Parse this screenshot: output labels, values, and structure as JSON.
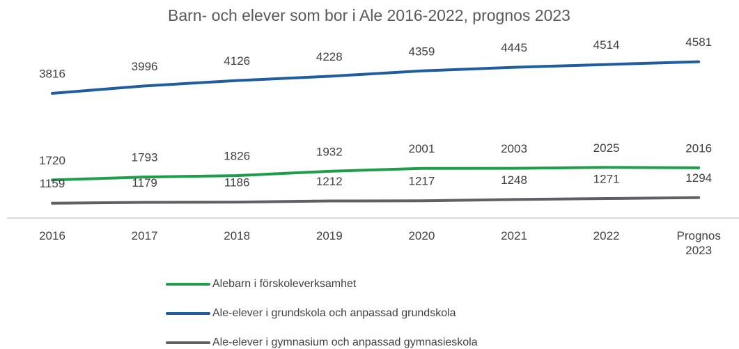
{
  "chart_data": {
    "type": "line",
    "title": "Barn- och elever som bor i Ale 2016-2022, prognos 2023",
    "categories": [
      "2016",
      "2017",
      "2018",
      "2019",
      "2020",
      "2021",
      "2022",
      "Prognos 2023"
    ],
    "series": [
      {
        "name": "Alebarn i förskoleverksamhet",
        "color": "#1e9e4a",
        "values": [
          1720,
          1793,
          1826,
          1932,
          2001,
          2003,
          2025,
          2016
        ]
      },
      {
        "name": "Ale-elever i grundskola och anpassad grundskola",
        "color": "#1f5d9e",
        "values": [
          3816,
          3996,
          4126,
          4228,
          4359,
          4445,
          4514,
          4581
        ]
      },
      {
        "name": "Ale-elever i gymnasium och anpassad gymnasieskola",
        "color": "#5f5f64",
        "values": [
          1159,
          1179,
          1186,
          1212,
          1217,
          1248,
          1271,
          1294
        ]
      }
    ],
    "ylim": [
      800,
      5400
    ]
  }
}
